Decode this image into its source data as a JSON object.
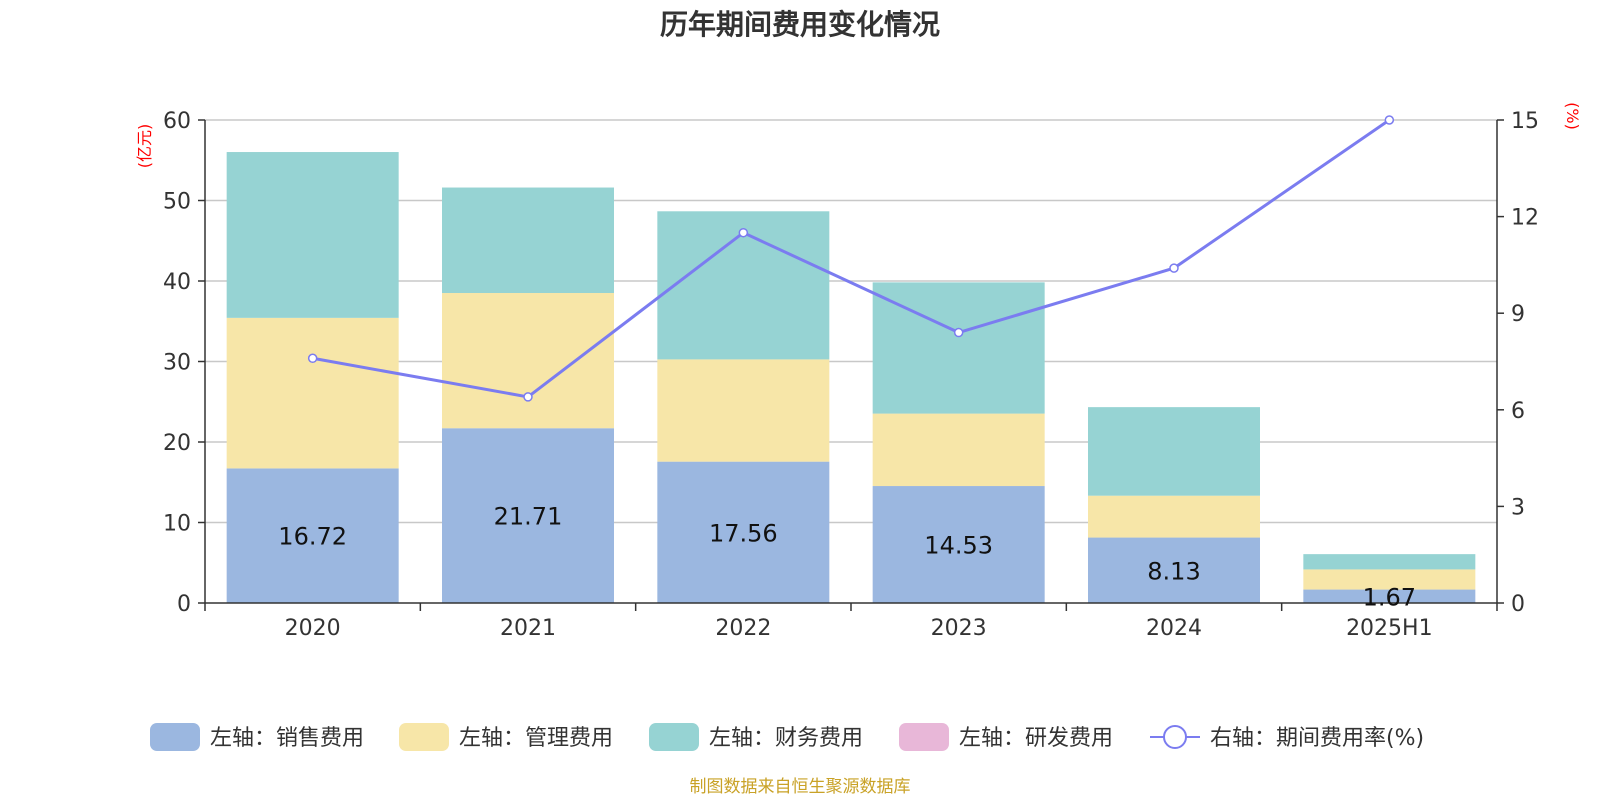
{
  "chart_data": {
    "type": "bar",
    "title": "历年期间费用变化情况",
    "categories": [
      "2020",
      "2021",
      "2022",
      "2023",
      "2024",
      "2025H1"
    ],
    "left_axis": {
      "unit": "(亿元)",
      "ylim": [
        0,
        60
      ],
      "ticks": [
        "0",
        "10",
        "20",
        "30",
        "40",
        "50",
        "60"
      ]
    },
    "right_axis": {
      "unit": "(%)",
      "ylim": [
        0,
        15
      ],
      "ticks": [
        "0",
        "3",
        "6",
        "9",
        "12",
        "15"
      ]
    },
    "series": [
      {
        "name": "左轴：销售费用",
        "axis": "left",
        "kind": "bar",
        "color": "#9bb7e0",
        "values": [
          16.72,
          21.71,
          17.56,
          14.53,
          8.13,
          1.67
        ],
        "labels": [
          "16.72",
          "21.71",
          "17.56",
          "14.53",
          "8.13",
          "1.67"
        ]
      },
      {
        "name": "左轴：管理费用",
        "axis": "left",
        "kind": "bar",
        "color": "#f7e6a8",
        "values": [
          18.7,
          16.8,
          12.7,
          9.0,
          5.2,
          2.5
        ]
      },
      {
        "name": "左轴：财务费用",
        "axis": "left",
        "kind": "bar",
        "color": "#96d3d3",
        "values": [
          20.6,
          13.1,
          18.4,
          16.3,
          11.0,
          1.9
        ]
      },
      {
        "name": "左轴：研发费用",
        "axis": "left",
        "kind": "bar",
        "color": "#e8b7d8",
        "values": [
          0,
          0,
          0,
          0,
          0,
          0
        ]
      },
      {
        "name": "右轴：期间费用率(%)",
        "axis": "right",
        "kind": "line",
        "color": "#7b7cf0",
        "values": [
          7.6,
          6.4,
          11.5,
          8.4,
          10.4,
          15.0
        ]
      }
    ],
    "grid": true,
    "legend_position": "bottom"
  },
  "source_note": "制图数据来自恒生聚源数据库"
}
